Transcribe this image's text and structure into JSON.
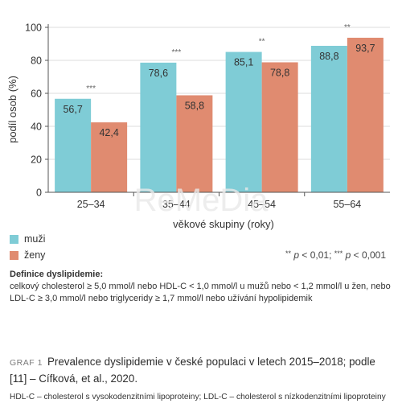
{
  "chart_data": {
    "type": "bar",
    "categories": [
      "25–34",
      "35–44",
      "45–54",
      "55–64"
    ],
    "series": [
      {
        "name": "muži",
        "color": "#7fccd6",
        "values": [
          56.7,
          78.6,
          85.1,
          88.8
        ],
        "labels": [
          "56,7",
          "78,6",
          "85,1",
          "88,8"
        ]
      },
      {
        "name": "ženy",
        "color": "#e08b70",
        "values": [
          42.4,
          58.8,
          78.8,
          93.7
        ],
        "labels": [
          "42,4",
          "58,8",
          "78,8",
          "93,7"
        ]
      }
    ],
    "significance": [
      "***",
      "***",
      "**",
      "**"
    ],
    "xlabel": "věkové skupiny (roky)",
    "ylabel": "podíl osob (%)",
    "ylim": [
      0,
      100
    ],
    "yticks": [
      0,
      20,
      40,
      60,
      80,
      100
    ],
    "grid": "horizontal"
  },
  "watermark": "ReMeDia",
  "legend": {
    "items": [
      {
        "label": "muži",
        "color": "#7fccd6"
      },
      {
        "label": "ženy",
        "color": "#e08b70"
      }
    ],
    "sig_note": {
      "stars_1": "**",
      "p_1": "p",
      "text_1": " < 0,01; ",
      "stars_2": "***",
      "p_2": "p",
      "text_2": " < 0,001"
    }
  },
  "definition": {
    "title": "Definice dyslipidemie:",
    "text": "celkový cholesterol ≥ 5,0 mmol/l nebo HDL-C < 1,0 mmol/l u mužů nebo < 1,2 mmol/l u žen, nebo LDL-C ≥ 3,0 mmol/l nebo triglyceridy ≥ 1,7 mmol/l nebo užívání hypolipidemik"
  },
  "caption": {
    "label": "GRAF 1",
    "title": "Prevalence dyslipidemie v české populaci v letech 2015–2018; podle [11] – Cífková, et al., 2020.",
    "abbrev": "HDL-C – cholesterol s vysokodenzitními lipoproteiny; LDL-C – cholesterol s nízkodenzitními lipoproteiny"
  }
}
